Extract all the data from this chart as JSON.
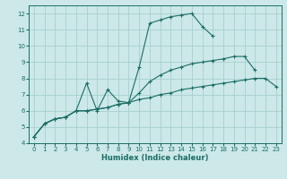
{
  "xlabel": "Humidex (Indice chaleur)",
  "ylabel": "",
  "bg_color": "#cce8e8",
  "grid_color": "#a8d0d0",
  "line_color": "#1a6e65",
  "xlim": [
    -0.5,
    23.5
  ],
  "ylim": [
    4,
    12.5
  ],
  "xticks": [
    0,
    1,
    2,
    3,
    4,
    5,
    6,
    7,
    8,
    9,
    10,
    11,
    12,
    13,
    14,
    15,
    16,
    17,
    18,
    19,
    20,
    21,
    22,
    23
  ],
  "yticks": [
    4,
    5,
    6,
    7,
    8,
    9,
    10,
    11,
    12
  ],
  "series": [
    {
      "x": [
        0,
        1,
        2,
        3,
        4,
        5,
        6,
        7,
        8,
        9,
        10,
        11,
        12,
        13,
        14,
        15,
        16,
        17,
        18,
        19,
        20,
        21,
        22,
        23
      ],
      "y": [
        4.4,
        5.2,
        5.5,
        5.6,
        6.0,
        6.0,
        6.1,
        6.2,
        6.4,
        6.5,
        6.7,
        6.8,
        7.0,
        7.1,
        7.3,
        7.4,
        7.5,
        7.6,
        7.7,
        7.8,
        7.9,
        8.0,
        8.0,
        7.5
      ]
    },
    {
      "x": [
        0,
        1,
        2,
        3,
        4,
        5,
        6,
        7,
        8,
        9,
        10,
        11,
        12,
        13,
        14,
        15,
        16,
        17,
        18,
        19,
        20,
        21,
        22,
        23
      ],
      "y": [
        4.4,
        5.2,
        5.5,
        5.6,
        6.0,
        6.0,
        6.1,
        6.2,
        6.4,
        6.5,
        7.1,
        7.8,
        8.2,
        8.5,
        8.7,
        8.9,
        9.0,
        9.1,
        9.2,
        9.35,
        9.35,
        8.5,
        null,
        null
      ]
    },
    {
      "x": [
        0,
        1,
        2,
        3,
        4,
        5,
        6,
        7,
        8,
        9,
        10,
        11,
        12,
        13,
        14,
        15,
        16,
        17,
        18,
        19,
        20,
        21,
        22
      ],
      "y": [
        4.4,
        5.2,
        5.5,
        5.6,
        6.0,
        7.7,
        6.0,
        7.3,
        6.6,
        6.5,
        8.7,
        11.4,
        11.6,
        11.8,
        11.9,
        12.0,
        11.2,
        10.6,
        null,
        null,
        null,
        null,
        null
      ]
    }
  ]
}
